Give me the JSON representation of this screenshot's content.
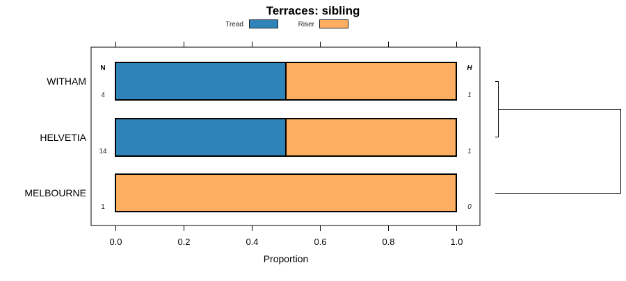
{
  "chart_data": {
    "type": "bar",
    "orientation": "horizontal",
    "stacked": true,
    "title": "Terraces: sibling",
    "xlabel": "Proportion",
    "ylabel": "",
    "xlim": [
      0,
      1
    ],
    "x_ticks": [
      "0.0",
      "0.2",
      "0.4",
      "0.6",
      "0.8",
      "1.0"
    ],
    "x_tick_values": [
      0,
      0.2,
      0.4,
      0.6,
      0.8,
      1.0
    ],
    "categories": [
      "WITHAM",
      "HELVETIA",
      "MELBOURNE"
    ],
    "series": [
      {
        "name": "Tread",
        "color": "#2e83b8",
        "values": [
          0.5,
          0.5,
          0
        ]
      },
      {
        "name": "Riser",
        "color": "#fdae61",
        "values": [
          0.5,
          0.5,
          1.0
        ]
      }
    ],
    "legend_position": "top",
    "n_header": "N",
    "n_values": [
      "4",
      "14",
      "1"
    ],
    "h_header": "H",
    "h_values": [
      "1",
      "1",
      "0"
    ],
    "dendrogram": "WITHAM and HELVETIA cluster first, then join MELBOURNE"
  }
}
